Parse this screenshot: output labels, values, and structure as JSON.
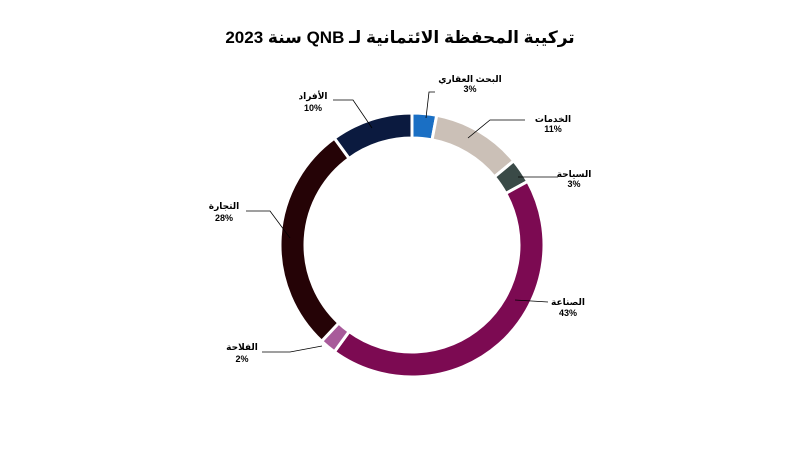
{
  "chart_data": {
    "type": "pie",
    "title": "تركيبة المحفظة الائتمانية لـ QNB سنة 2023",
    "slices": [
      {
        "label": "البحث العقاري",
        "value": 3,
        "value_label": "3%",
        "color": "#1a6fc4"
      },
      {
        "label": "الخدمات",
        "value": 11,
        "value_label": "11%",
        "color": "#cbc0b7"
      },
      {
        "label": "السياحة",
        "value": 3,
        "value_label": "3%",
        "color": "#3a4a47"
      },
      {
        "label": "الصناعة",
        "value": 43,
        "value_label": "43%",
        "color": "#7c0a52"
      },
      {
        "label": "الفلاحة",
        "value": 2,
        "value_label": "2%",
        "color": "#a85a9a"
      },
      {
        "label": "التجارة",
        "value": 28,
        "value_label": "28%",
        "color": "#250306"
      },
      {
        "label": "الأفراد",
        "value": 10,
        "value_label": "10%",
        "color": "#0b1a3f"
      }
    ]
  }
}
